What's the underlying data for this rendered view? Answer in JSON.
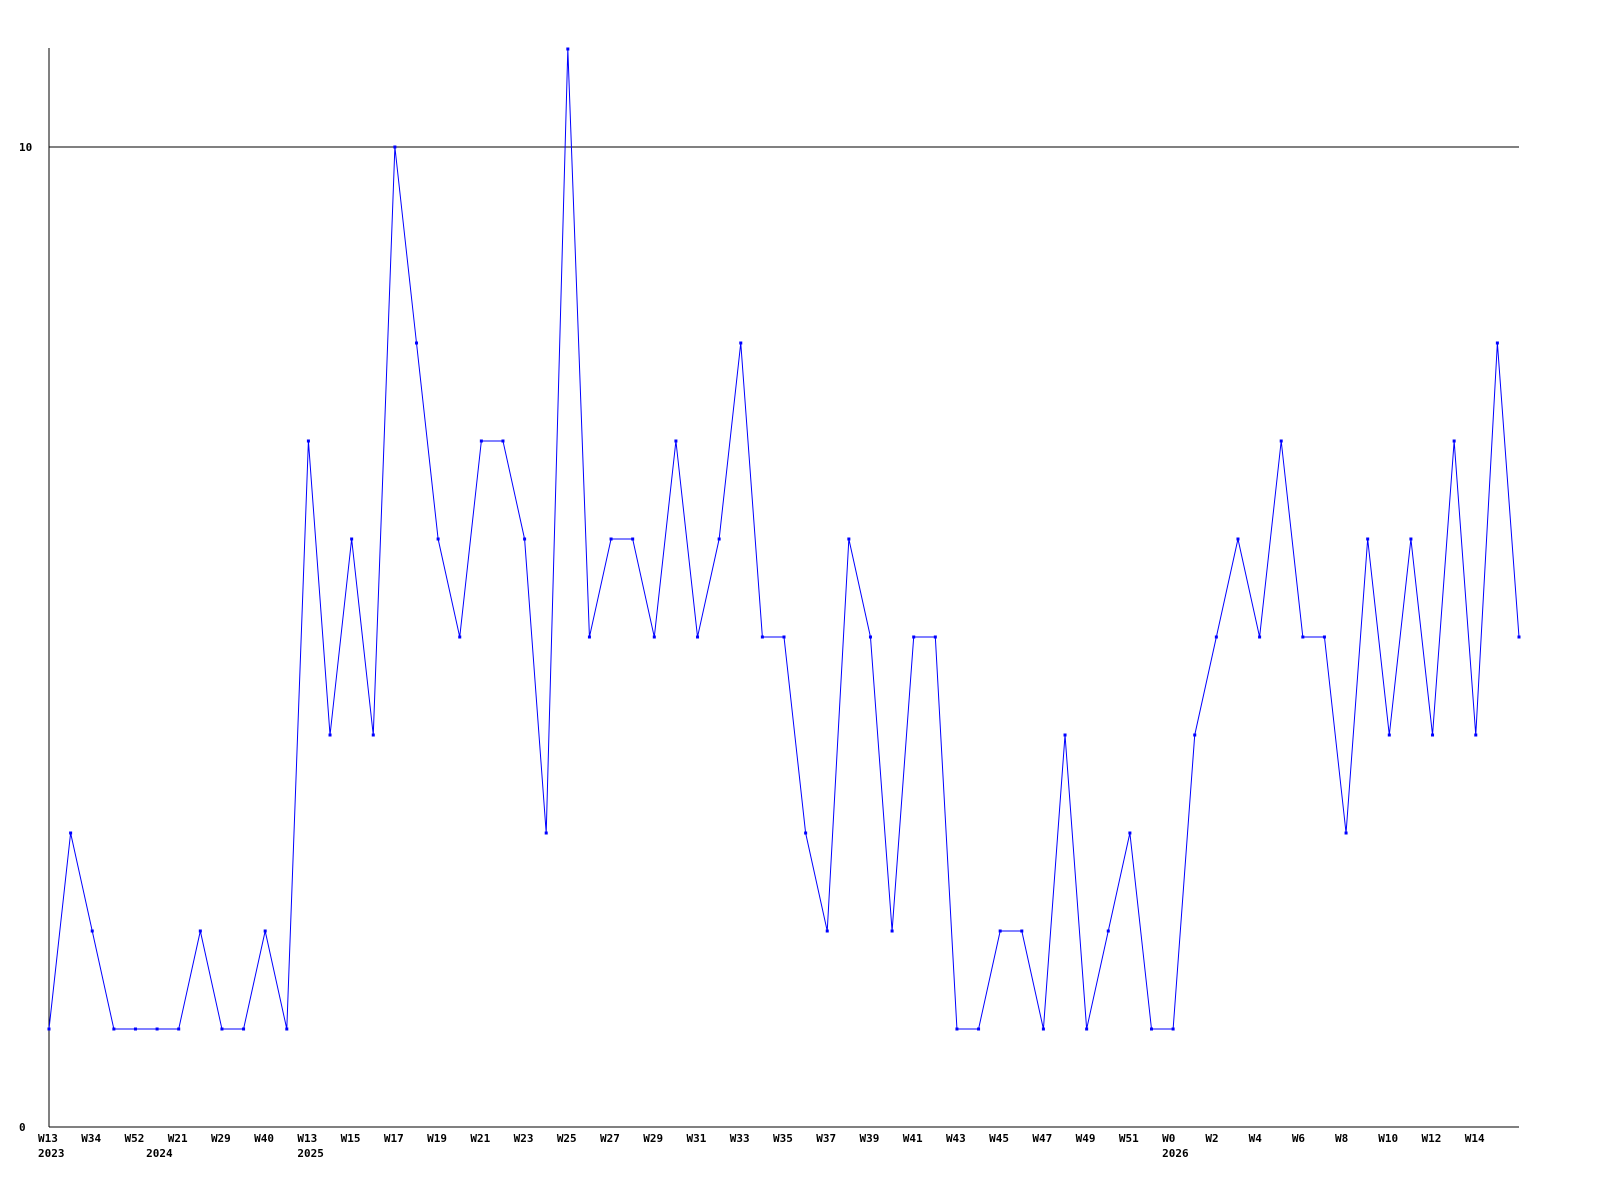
{
  "chart_data": {
    "type": "line",
    "title": "",
    "xlabel": "",
    "ylabel": "",
    "ylim": [
      0,
      11
    ],
    "y_ticks": [
      "0",
      "10"
    ],
    "grid": "horizontal line at 10",
    "line_color": "#0000ff",
    "x_tick_labels": [
      "W13",
      "W34",
      "W52",
      "W21",
      "W29",
      "W40",
      "W13",
      "W15",
      "W17",
      "W19",
      "W21",
      "W23",
      "W25",
      "W27",
      "W29",
      "W31",
      "W33",
      "W35",
      "W37",
      "W39",
      "W41",
      "W43",
      "W45",
      "W47",
      "W49",
      "W51",
      "W0",
      "W2",
      "W4",
      "W6",
      "W8",
      "W10",
      "W12",
      "W14"
    ],
    "year_labels": [
      {
        "label": "2023",
        "index": 0
      },
      {
        "label": "2024",
        "index": 5
      },
      {
        "label": "2025",
        "index": 12
      },
      {
        "label": "2026",
        "index": 52
      }
    ],
    "series": [
      {
        "values": [
          1,
          3,
          2,
          1,
          1,
          1,
          1,
          2,
          1,
          1,
          2,
          1,
          7,
          4,
          6,
          4,
          10,
          8,
          6,
          5,
          7,
          7,
          6,
          3,
          11,
          5,
          6,
          6,
          5,
          7,
          5,
          6,
          8,
          5,
          5,
          3,
          2,
          6,
          5,
          2,
          5,
          5,
          1,
          1,
          2,
          2,
          1,
          4,
          1,
          2,
          3,
          1,
          1,
          4,
          5,
          6,
          5,
          7,
          5,
          5,
          3,
          6,
          4,
          6,
          4,
          7,
          4,
          8,
          5
        ]
      }
    ]
  }
}
